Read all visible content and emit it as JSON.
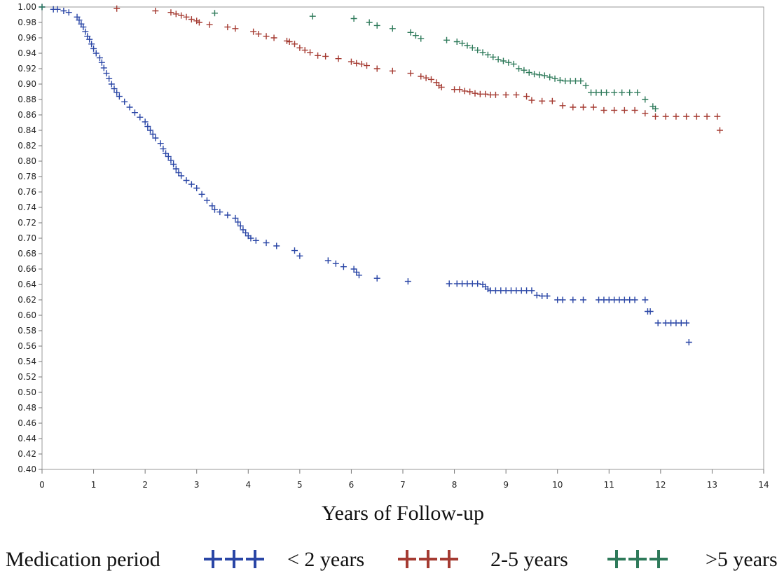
{
  "chart_data": {
    "type": "scatter",
    "title": "",
    "xlabel": "Years of Follow-up",
    "ylabel": "",
    "xlim": [
      0,
      14
    ],
    "ylim": [
      0.4,
      1.0
    ],
    "x_ticks": [
      "0",
      "1",
      "2",
      "3",
      "4",
      "5",
      "6",
      "7",
      "8",
      "9",
      "10",
      "11",
      "12",
      "13",
      "14"
    ],
    "y_ticks": [
      "0.40",
      "0.42",
      "0.44",
      "0.46",
      "0.48",
      "0.50",
      "0.52",
      "0.54",
      "0.56",
      "0.58",
      "0.60",
      "0.62",
      "0.64",
      "0.66",
      "0.68",
      "0.70",
      "0.72",
      "0.74",
      "0.76",
      "0.78",
      "0.80",
      "0.82",
      "0.84",
      "0.86",
      "0.88",
      "0.90",
      "0.92",
      "0.94",
      "0.96",
      "0.98",
      "1.00"
    ],
    "grid": false,
    "legend": {
      "title": "Medication period",
      "placement": "bottom",
      "marker": "+++"
    },
    "series": [
      {
        "name": "< 2 years",
        "color": "#2a46a6",
        "x": [
          0,
          0.22,
          0.3,
          0.42,
          0.52,
          0.68,
          0.72,
          0.76,
          0.8,
          0.84,
          0.88,
          0.92,
          0.96,
          1.0,
          1.05,
          1.12,
          1.16,
          1.2,
          1.25,
          1.3,
          1.35,
          1.4,
          1.45,
          1.5,
          1.6,
          1.7,
          1.8,
          1.9,
          2.0,
          2.05,
          2.1,
          2.15,
          2.2,
          2.3,
          2.35,
          2.4,
          2.45,
          2.5,
          2.55,
          2.6,
          2.65,
          2.7,
          2.8,
          2.9,
          3.0,
          3.1,
          3.2,
          3.3,
          3.35,
          3.45,
          3.6,
          3.75,
          3.8,
          3.85,
          3.9,
          3.95,
          4.0,
          4.05,
          4.15,
          4.35,
          4.55,
          4.9,
          5.0,
          5.55,
          5.7,
          5.85,
          6.05,
          6.1,
          6.15,
          6.5,
          7.1,
          7.9,
          8.05,
          8.15,
          8.25,
          8.35,
          8.45,
          8.55,
          8.6,
          8.65,
          8.7,
          8.8,
          8.9,
          9.0,
          9.1,
          9.2,
          9.3,
          9.4,
          9.5,
          9.6,
          9.7,
          9.8,
          10.0,
          10.1,
          10.3,
          10.5,
          10.8,
          10.9,
          11.0,
          11.1,
          11.2,
          11.3,
          11.4,
          11.5,
          11.7,
          11.75,
          11.8,
          11.95,
          12.1,
          12.2,
          12.3,
          12.4,
          12.5,
          12.55
        ],
        "y": [
          1.0,
          0.997,
          0.997,
          0.995,
          0.993,
          0.987,
          0.983,
          0.978,
          0.974,
          0.968,
          0.962,
          0.958,
          0.952,
          0.946,
          0.94,
          0.934,
          0.928,
          0.921,
          0.914,
          0.907,
          0.9,
          0.894,
          0.889,
          0.884,
          0.877,
          0.87,
          0.863,
          0.857,
          0.851,
          0.845,
          0.84,
          0.835,
          0.83,
          0.823,
          0.816,
          0.81,
          0.806,
          0.801,
          0.796,
          0.79,
          0.785,
          0.781,
          0.775,
          0.77,
          0.765,
          0.757,
          0.749,
          0.742,
          0.737,
          0.734,
          0.73,
          0.726,
          0.721,
          0.716,
          0.711,
          0.707,
          0.703,
          0.7,
          0.697,
          0.694,
          0.69,
          0.684,
          0.677,
          0.671,
          0.667,
          0.663,
          0.66,
          0.656,
          0.652,
          0.648,
          0.644,
          0.641,
          0.641,
          0.641,
          0.641,
          0.641,
          0.641,
          0.64,
          0.637,
          0.634,
          0.632,
          0.632,
          0.632,
          0.632,
          0.632,
          0.632,
          0.632,
          0.632,
          0.632,
          0.626,
          0.625,
          0.625,
          0.62,
          0.62,
          0.62,
          0.62,
          0.62,
          0.62,
          0.62,
          0.62,
          0.62,
          0.62,
          0.62,
          0.62,
          0.62,
          0.605,
          0.605,
          0.59,
          0.59,
          0.59,
          0.59,
          0.59,
          0.59,
          0.565
        ]
      },
      {
        "name": "2-5 years",
        "color": "#a53b32",
        "x": [
          1.45,
          2.2,
          2.5,
          2.6,
          2.7,
          2.8,
          2.9,
          3.0,
          3.05,
          3.25,
          3.6,
          3.75,
          4.1,
          4.2,
          4.35,
          4.5,
          4.75,
          4.8,
          4.9,
          5.0,
          5.1,
          5.2,
          5.35,
          5.5,
          5.75,
          6.0,
          6.1,
          6.2,
          6.3,
          6.5,
          6.8,
          7.15,
          7.35,
          7.45,
          7.55,
          7.65,
          7.7,
          7.75,
          8.0,
          8.1,
          8.2,
          8.3,
          8.4,
          8.5,
          8.6,
          8.7,
          8.8,
          9.0,
          9.2,
          9.4,
          9.5,
          9.7,
          9.9,
          10.1,
          10.3,
          10.5,
          10.7,
          10.9,
          11.1,
          11.3,
          11.5,
          11.7,
          11.9,
          12.1,
          12.3,
          12.5,
          12.7,
          12.9,
          13.1,
          13.15
        ],
        "y": [
          0.998,
          0.995,
          0.993,
          0.991,
          0.989,
          0.987,
          0.984,
          0.982,
          0.98,
          0.977,
          0.974,
          0.972,
          0.968,
          0.965,
          0.962,
          0.96,
          0.956,
          0.955,
          0.952,
          0.947,
          0.944,
          0.941,
          0.937,
          0.936,
          0.933,
          0.929,
          0.927,
          0.926,
          0.924,
          0.92,
          0.917,
          0.914,
          0.91,
          0.908,
          0.906,
          0.902,
          0.898,
          0.896,
          0.893,
          0.893,
          0.891,
          0.89,
          0.888,
          0.887,
          0.887,
          0.886,
          0.886,
          0.886,
          0.886,
          0.884,
          0.879,
          0.878,
          0.878,
          0.872,
          0.87,
          0.87,
          0.87,
          0.866,
          0.866,
          0.866,
          0.866,
          0.862,
          0.858,
          0.858,
          0.858,
          0.858,
          0.858,
          0.858,
          0.858,
          0.84
        ]
      },
      {
        "name": ">5 years",
        "color": "#2e7a5a",
        "x": [
          0,
          3.35,
          5.25,
          6.05,
          6.35,
          6.5,
          6.8,
          7.15,
          7.25,
          7.35,
          7.85,
          8.05,
          8.15,
          8.25,
          8.35,
          8.45,
          8.55,
          8.65,
          8.75,
          8.85,
          8.95,
          9.05,
          9.15,
          9.25,
          9.35,
          9.45,
          9.55,
          9.65,
          9.75,
          9.85,
          9.95,
          10.05,
          10.15,
          10.25,
          10.35,
          10.45,
          10.55,
          10.65,
          10.75,
          10.85,
          10.95,
          11.1,
          11.25,
          11.4,
          11.55,
          11.7,
          11.85,
          11.9
        ],
        "y": [
          1.0,
          0.992,
          0.988,
          0.985,
          0.98,
          0.976,
          0.972,
          0.967,
          0.963,
          0.959,
          0.957,
          0.955,
          0.953,
          0.95,
          0.947,
          0.944,
          0.941,
          0.938,
          0.935,
          0.932,
          0.93,
          0.928,
          0.926,
          0.92,
          0.918,
          0.915,
          0.913,
          0.912,
          0.911,
          0.909,
          0.907,
          0.905,
          0.904,
          0.904,
          0.904,
          0.904,
          0.898,
          0.889,
          0.889,
          0.889,
          0.889,
          0.889,
          0.889,
          0.889,
          0.889,
          0.88,
          0.871,
          0.868
        ]
      }
    ]
  }
}
